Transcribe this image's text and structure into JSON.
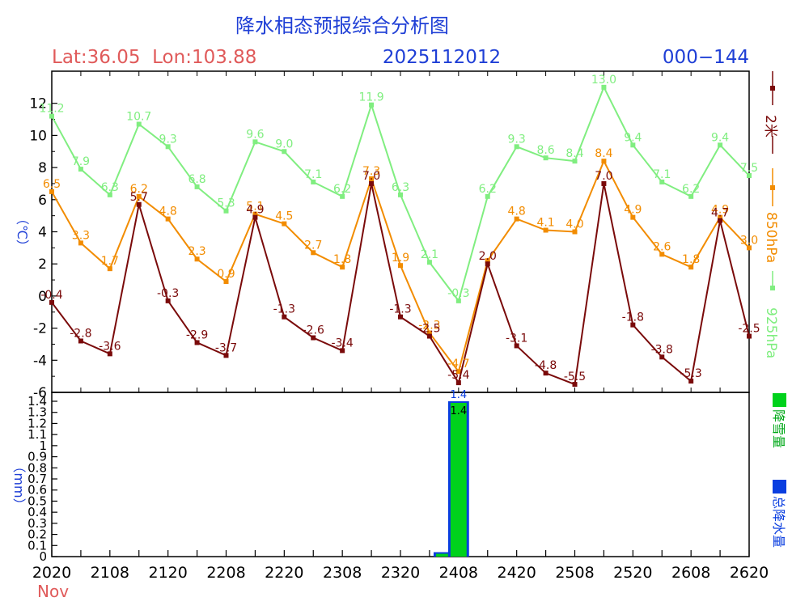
{
  "header": {
    "title": "降水相态预报综合分析图",
    "location": "Lat:36.05  Lon:103.88",
    "init_time": "2025112012",
    "forecast_range": "000−144"
  },
  "colors": {
    "title": "#1f3fd6",
    "location": "#e05a5a",
    "t2m": "#7a0a0a",
    "t850": "#f28c00",
    "t925": "#80ee80",
    "snow": "#00d21c",
    "total": "#0a3ee0",
    "month": "#e05a5a"
  },
  "chart_data": [
    {
      "type": "line",
      "ylabel": "（℃）",
      "ylim": [
        -6,
        14
      ],
      "yticks": [
        "-6",
        "-4",
        "-2",
        "0",
        "2",
        "4",
        "6",
        "8",
        "10",
        "12"
      ],
      "x": [
        0,
        1,
        2,
        3,
        4,
        5,
        6,
        7,
        8,
        9,
        10,
        11,
        12,
        13,
        14,
        15,
        16,
        17,
        18,
        19,
        20,
        21,
        22,
        23,
        24
      ],
      "series": [
        {
          "name": "925hPa",
          "values": [
            11.2,
            7.9,
            6.3,
            10.7,
            9.3,
            6.8,
            5.3,
            9.6,
            9.0,
            7.1,
            6.2,
            11.9,
            6.3,
            2.1,
            -0.3,
            6.2,
            9.3,
            8.6,
            8.4,
            13.0,
            9.4,
            7.1,
            6.2,
            9.4,
            7.5
          ],
          "labels": [
            "11.2",
            "7.9",
            "6.3",
            "10.7",
            "9.3",
            "6.8",
            "5.3",
            "9.6",
            "9.0",
            "7.1",
            "6.2",
            "11.9",
            "6.3",
            "2.1",
            "-0.3",
            "6.2",
            "9.3",
            "8.6",
            "8.4",
            "13.0",
            "9.4",
            "7.1",
            "6.2",
            "9.4",
            "7.5"
          ]
        },
        {
          "name": "850hPa",
          "values": [
            6.5,
            3.3,
            1.7,
            6.2,
            4.8,
            2.3,
            0.9,
            5.1,
            4.5,
            2.7,
            1.8,
            7.3,
            1.9,
            -2.3,
            -4.7,
            2.2,
            4.8,
            4.1,
            4.0,
            8.4,
            4.9,
            2.6,
            1.8,
            4.9,
            3.0
          ],
          "labels": [
            "6.5",
            "3.3",
            "1.7",
            "6.2",
            "4.8",
            "2.3",
            "0.9",
            "5.1",
            "4.5",
            "2.7",
            "1.8",
            "7.3",
            "1.9",
            "-2.3",
            "-4.7",
            "",
            "4.8",
            "4.1",
            "4.0",
            "8.4",
            "4.9",
            "2.6",
            "1.8",
            "4.9",
            "3.0"
          ]
        },
        {
          "name": "2米",
          "values": [
            -0.4,
            -2.8,
            -3.6,
            5.7,
            -0.3,
            -2.9,
            -3.7,
            4.9,
            -1.3,
            -2.6,
            -3.4,
            7.0,
            -1.3,
            -2.5,
            -5.4,
            2.0,
            -3.1,
            -4.8,
            -5.5,
            7.0,
            -1.8,
            -3.8,
            -5.3,
            4.7,
            -2.5
          ],
          "labels": [
            "-0.4",
            "-2.8",
            "-3.6",
            "5.7",
            "-0.3",
            "-2.9",
            "-3.7",
            "4.9",
            "-1.3",
            "-2.6",
            "-3.4",
            "7.0",
            "-1.3",
            "-2.5",
            "-5.4",
            "2.0",
            "-3.1",
            "-4.8",
            "-5.5",
            "7.0",
            "-1.8",
            "-3.8",
            "-5.3",
            "4.7",
            "-2.5"
          ]
        }
      ]
    },
    {
      "type": "bar",
      "ylabel": "（mm）",
      "ylim": [
        0,
        1.4
      ],
      "yticks": [
        "0",
        "0.1",
        "0.2",
        "0.3",
        "0.4",
        "0.5",
        "0.6",
        "0.7",
        "0.8",
        "0.9",
        "1",
        "1.1",
        "1.2",
        "1.3",
        "1.4"
      ],
      "xticks": [
        "2020",
        "2108",
        "2120",
        "2208",
        "2220",
        "2308",
        "2320",
        "2408",
        "2420",
        "2508",
        "2520",
        "2608",
        "2620"
      ],
      "month": "Nov",
      "series": [
        {
          "name": "降雪量",
          "bars": [
            {
              "x": 13.5,
              "value": 0.04
            },
            {
              "x": 14.0,
              "value": 1.4
            }
          ],
          "label": "1.4"
        },
        {
          "name": "总降水量",
          "bars": [
            {
              "x": 13.5,
              "value": 0.04
            },
            {
              "x": 14.0,
              "value": 1.4
            }
          ],
          "label": "1.4"
        }
      ]
    }
  ]
}
